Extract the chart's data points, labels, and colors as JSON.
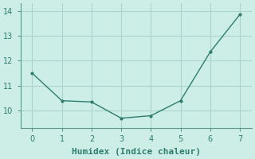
{
  "x": [
    0,
    1,
    2,
    3,
    4,
    5,
    6,
    7
  ],
  "y": [
    11.5,
    10.4,
    10.35,
    9.7,
    9.8,
    10.4,
    12.35,
    13.85
  ],
  "line_color": "#2d7d6e",
  "marker": ".",
  "marker_size": 4,
  "linewidth": 1.0,
  "xlabel": "Humidex (Indice chaleur)",
  "xlabel_fontsize": 8,
  "ylim": [
    9.3,
    14.3
  ],
  "xlim": [
    -0.4,
    7.4
  ],
  "yticks": [
    10,
    11,
    12,
    13,
    14
  ],
  "xticks": [
    0,
    1,
    2,
    3,
    4,
    5,
    6,
    7
  ],
  "bg_color": "#cceee6",
  "grid_color": "#aad4cc",
  "tick_fontsize": 7,
  "axis_color": "#5a9a8a"
}
